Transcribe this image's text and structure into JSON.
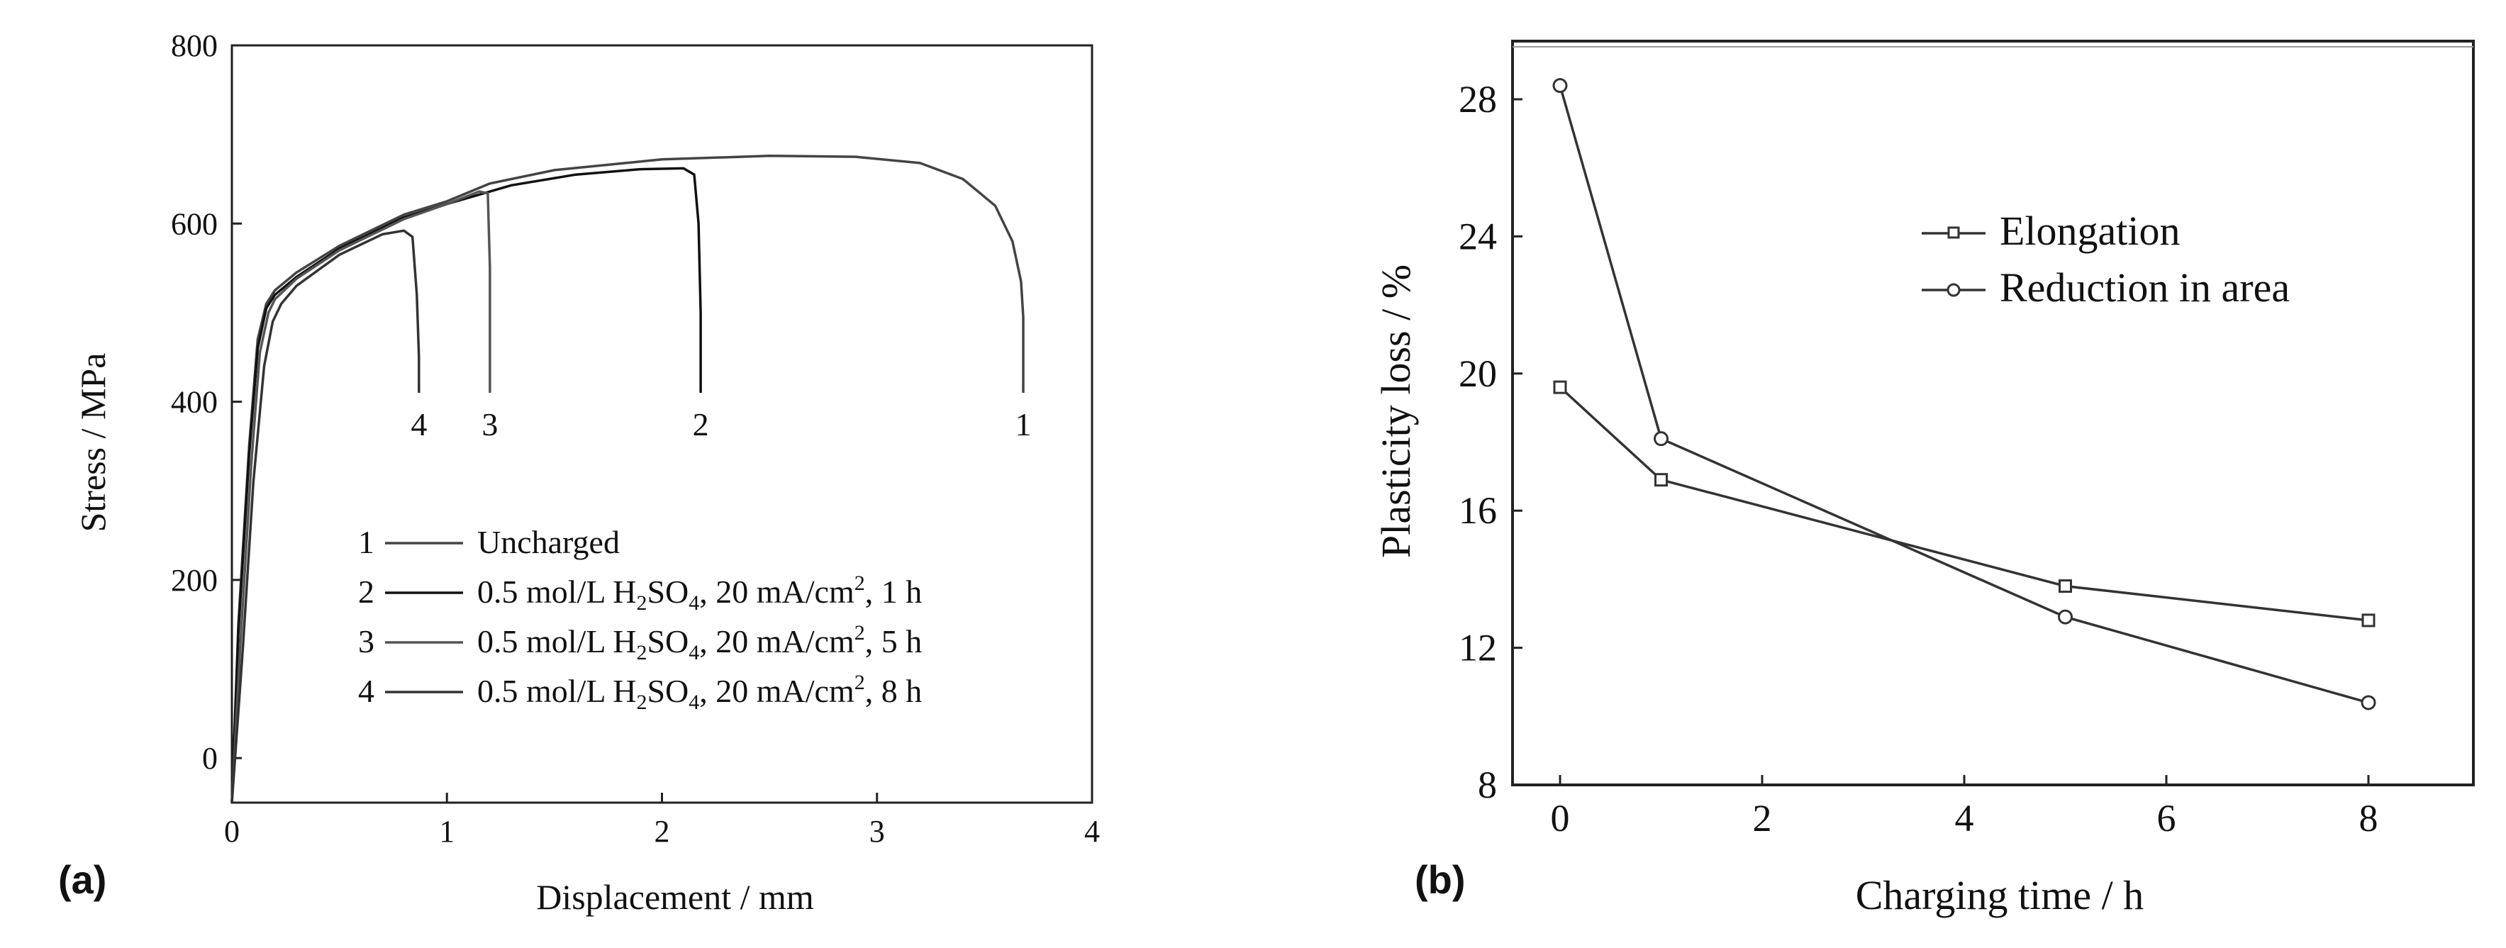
{
  "panels": [
    {
      "label": "(a)"
    },
    {
      "label": "(b)"
    }
  ],
  "chart_data": [
    {
      "type": "line",
      "title": "",
      "xlabel": "Displacement / mm",
      "ylabel": "Stress / MPa",
      "xlim": [
        0,
        4
      ],
      "ylim": [
        -50,
        800
      ],
      "xticks": [
        0,
        1,
        2,
        3,
        4
      ],
      "yticks": [
        0,
        200,
        400,
        600,
        800
      ],
      "grid": false,
      "legend_position": "bottom-center",
      "series": [
        {
          "id": "1",
          "name": "Uncharged",
          "legend_text": "Uncharged",
          "curve_label": "1",
          "x": [
            0,
            0.03,
            0.08,
            0.12,
            0.16,
            0.2,
            0.3,
            0.5,
            0.8,
            1.0,
            1.2,
            1.5,
            2.0,
            2.5,
            2.9,
            3.2,
            3.4,
            3.55,
            3.63,
            3.67,
            3.68,
            3.68
          ],
          "y": [
            -50,
            150,
            350,
            470,
            510,
            525,
            545,
            575,
            610,
            625,
            645,
            660,
            672,
            676,
            675,
            668,
            650,
            620,
            580,
            535,
            495,
            410
          ]
        },
        {
          "id": "2",
          "name": "0.5 mol/L H2SO4, 20 mA/cm2, 1 h",
          "legend_text": [
            "0.5 mol/L H",
            "2",
            "SO",
            "4",
            ", 20 mA/cm",
            "2",
            ", 1 h"
          ],
          "curve_label": "2",
          "x": [
            0,
            0.03,
            0.08,
            0.12,
            0.16,
            0.2,
            0.3,
            0.5,
            0.8,
            1.0,
            1.3,
            1.6,
            1.9,
            2.1,
            2.15,
            2.17,
            2.18,
            2.18
          ],
          "y": [
            -50,
            140,
            340,
            460,
            505,
            520,
            540,
            572,
            607,
            622,
            643,
            655,
            661,
            662,
            655,
            600,
            500,
            410
          ]
        },
        {
          "id": "3",
          "name": "0.5 mol/L H2SO4, 20 mA/cm2, 5 h",
          "legend_text": [
            "0.5 mol/L H",
            "2",
            "SO",
            "4",
            ", 20 mA/cm",
            "2",
            ", 5 h"
          ],
          "curve_label": "3",
          "x": [
            0,
            0.04,
            0.09,
            0.13,
            0.17,
            0.2,
            0.3,
            0.5,
            0.8,
            1.0,
            1.15,
            1.19,
            1.2,
            1.2
          ],
          "y": [
            -50,
            130,
            330,
            455,
            500,
            515,
            538,
            570,
            605,
            622,
            636,
            634,
            550,
            410
          ]
        },
        {
          "id": "4",
          "name": "0.5 mol/L H2SO4, 20 mA/cm2, 8 h",
          "legend_text": [
            "0.5 mol/L H",
            "2",
            "SO",
            "4",
            ", 20 mA/cm",
            "2",
            ", 8 h"
          ],
          "curve_label": "4",
          "x": [
            0,
            0.05,
            0.1,
            0.15,
            0.19,
            0.23,
            0.3,
            0.5,
            0.7,
            0.8,
            0.84,
            0.86,
            0.87,
            0.87
          ],
          "y": [
            -50,
            120,
            310,
            440,
            490,
            510,
            530,
            565,
            588,
            592,
            585,
            520,
            450,
            410
          ]
        }
      ]
    },
    {
      "type": "line",
      "title": "",
      "xlabel": "Charging time / h",
      "ylabel": "Plasticity loss / %",
      "xlim": [
        -0.5,
        9
      ],
      "ylim": [
        8,
        30
      ],
      "xticks": [
        0,
        2,
        4,
        6,
        8
      ],
      "yticks": [
        8,
        12,
        16,
        20,
        24,
        28
      ],
      "grid": false,
      "legend_position": "top-right",
      "x": [
        0,
        1,
        5,
        8
      ],
      "series": [
        {
          "name": "Elongation",
          "marker": "square",
          "values": [
            19.6,
            16.9,
            13.8,
            12.8
          ]
        },
        {
          "name": "Reduction in area",
          "marker": "circle",
          "values": [
            28.4,
            18.1,
            12.9,
            10.4
          ]
        }
      ]
    }
  ]
}
